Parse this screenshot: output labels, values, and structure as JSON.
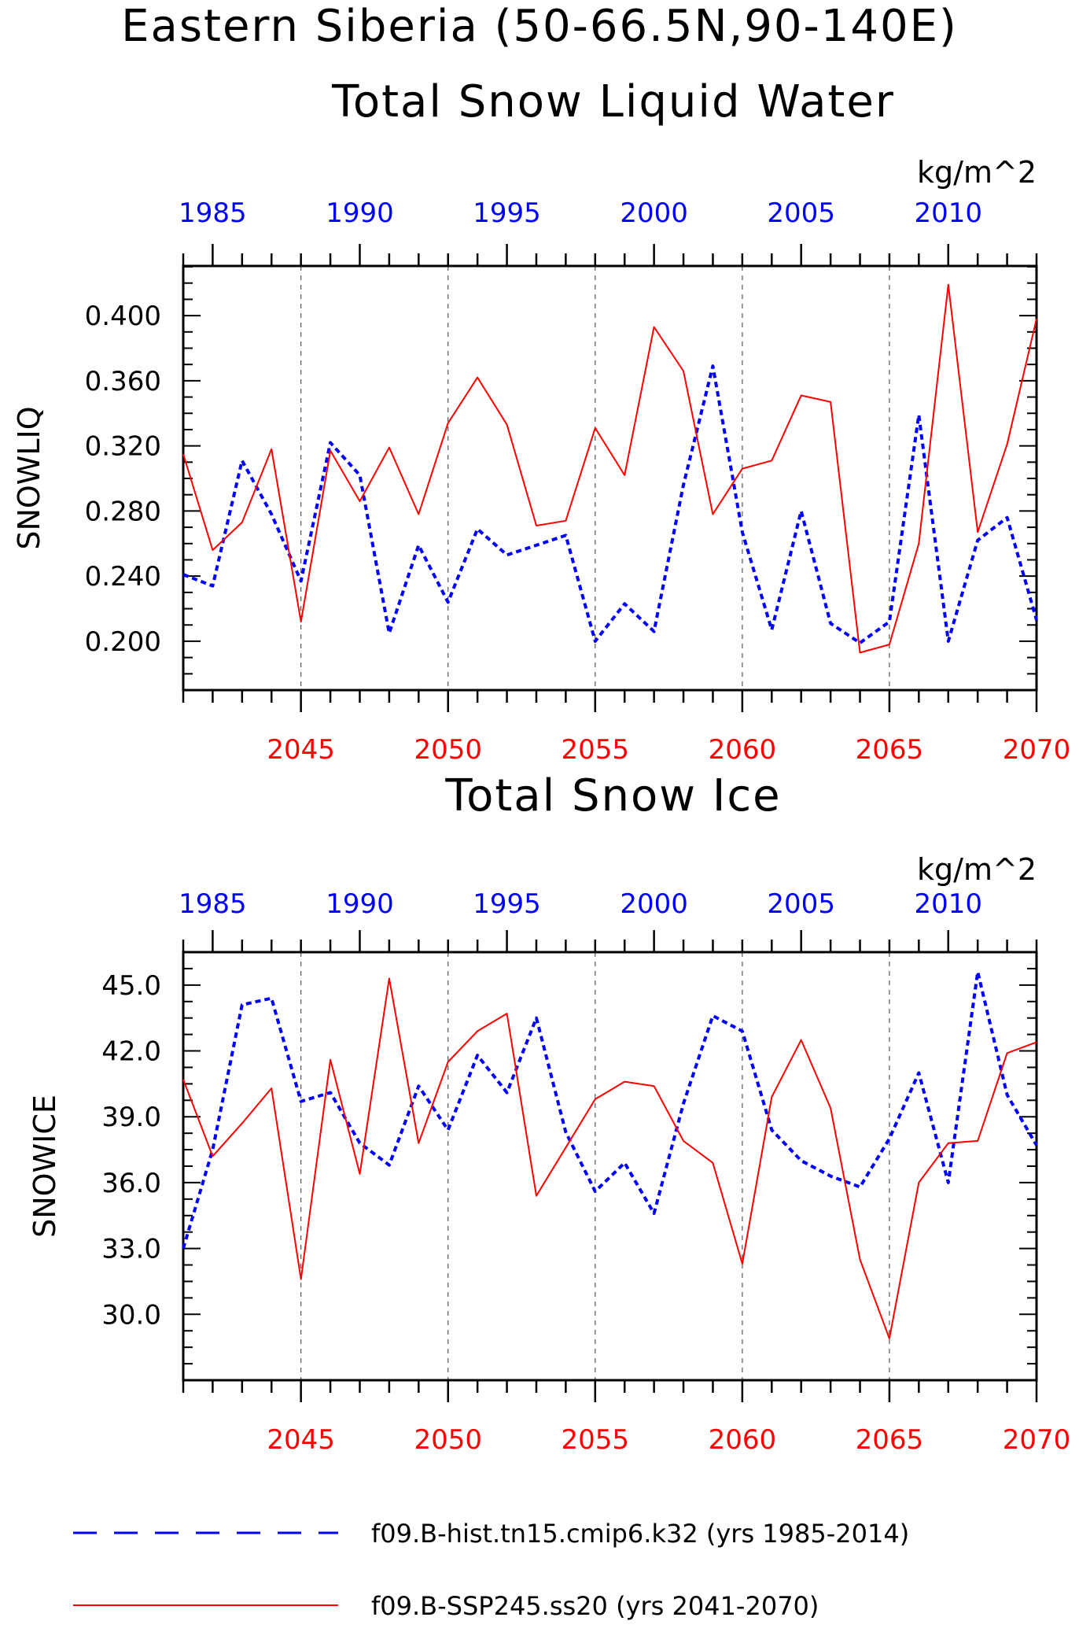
{
  "page": {
    "title": "Eastern Siberia (50-66.5N,90-140E)"
  },
  "legend": [
    {
      "label": "f09.B-hist.tn15.cmip6.k32 (yrs 1985-2014)",
      "color": "#0000ff",
      "style": "dashed"
    },
    {
      "label": "f09.B-SSP245.ss20 (yrs 2041-2070)",
      "color": "#ff0000",
      "style": "solid"
    }
  ],
  "chart_data": [
    {
      "type": "line",
      "title": "Total Snow Liquid Water",
      "units": "kg/m^2",
      "ylabel": "SNOWLIQ",
      "ylim": [
        0.17,
        0.4305
      ],
      "yticks": [
        0.2,
        0.24,
        0.28,
        0.32,
        0.36,
        0.4
      ],
      "ytick_labels": [
        "0.200",
        "0.240",
        "0.280",
        "0.320",
        "0.360",
        "0.400"
      ],
      "x_top": {
        "range": [
          1984.0,
          2013.0
        ],
        "ticks": [
          1985,
          1990,
          1995,
          2000,
          2005,
          2010
        ],
        "color": "#0000ff"
      },
      "x_bottom": {
        "range": [
          2041.0,
          2070.0
        ],
        "ticks": [
          2045,
          2050,
          2055,
          2060,
          2065,
          2070
        ],
        "color": "#ff0000"
      },
      "grid": "vertical-dashed-at-bottom-major-ticks",
      "series": [
        {
          "name": "f09.B-hist.tn15.cmip6.k32 (yrs 1985-2014)",
          "axis": "top",
          "color": "#0000ff",
          "style": "dashed",
          "x": [
            1984,
            1985,
            1986,
            1987,
            1988,
            1989,
            1990,
            1991,
            1992,
            1993,
            1994,
            1995,
            1996,
            1997,
            1998,
            1999,
            2000,
            2001,
            2002,
            2003,
            2004,
            2005,
            2006,
            2007,
            2008,
            2009,
            2010,
            2011,
            2012,
            2013
          ],
          "values": [
            0.241,
            0.234,
            0.311,
            0.278,
            0.237,
            0.322,
            0.302,
            0.205,
            0.259,
            0.224,
            0.269,
            0.253,
            0.259,
            0.265,
            0.2,
            0.223,
            0.206,
            0.296,
            0.369,
            0.267,
            0.207,
            0.28,
            0.211,
            0.199,
            0.212,
            0.339,
            0.2,
            0.262,
            0.276,
            0.213
          ]
        },
        {
          "name": "f09.B-SSP245.ss20 (yrs 2041-2070)",
          "axis": "bottom",
          "color": "#ff0000",
          "style": "solid",
          "x": [
            2041,
            2042,
            2043,
            2044,
            2045,
            2046,
            2047,
            2048,
            2049,
            2050,
            2051,
            2052,
            2053,
            2054,
            2055,
            2056,
            2057,
            2058,
            2059,
            2060,
            2061,
            2062,
            2063,
            2064,
            2065,
            2066,
            2067,
            2068,
            2069,
            2070
          ],
          "values": [
            0.315,
            0.256,
            0.273,
            0.318,
            0.212,
            0.317,
            0.286,
            0.319,
            0.278,
            0.334,
            0.362,
            0.333,
            0.271,
            0.274,
            0.331,
            0.302,
            0.393,
            0.366,
            0.278,
            0.306,
            0.311,
            0.351,
            0.347,
            0.193,
            0.198,
            0.26,
            0.419,
            0.267,
            0.321,
            0.398
          ]
        }
      ]
    },
    {
      "type": "line",
      "title": "Total Snow Ice",
      "units": "kg/m^2",
      "ylabel": "SNOWICE",
      "ylim": [
        27.0,
        46.5
      ],
      "yticks": [
        30,
        33,
        36,
        39,
        42,
        45
      ],
      "ytick_labels": [
        "30.0",
        "33.0",
        "36.0",
        "39.0",
        "42.0",
        "45.0"
      ],
      "x_top": {
        "range": [
          1984.0,
          2013.0
        ],
        "ticks": [
          1985,
          1990,
          1995,
          2000,
          2005,
          2010
        ],
        "color": "#0000ff"
      },
      "x_bottom": {
        "range": [
          2041.0,
          2070.0
        ],
        "ticks": [
          2045,
          2050,
          2055,
          2060,
          2065,
          2070
        ],
        "color": "#ff0000"
      },
      "grid": "vertical-dashed-at-bottom-major-ticks",
      "series": [
        {
          "name": "f09.B-hist.tn15.cmip6.k32 (yrs 1985-2014)",
          "axis": "top",
          "color": "#0000ff",
          "style": "dashed",
          "x": [
            1984,
            1985,
            1986,
            1987,
            1988,
            1989,
            1990,
            1991,
            1992,
            1993,
            1994,
            1995,
            1996,
            1997,
            1998,
            1999,
            2000,
            2001,
            2002,
            2003,
            2004,
            2005,
            2006,
            2007,
            2008,
            2009,
            2010,
            2011,
            2012,
            2013
          ],
          "values": [
            33.0,
            37.5,
            44.1,
            44.4,
            39.7,
            40.1,
            37.8,
            36.8,
            40.4,
            38.4,
            41.8,
            40.1,
            43.5,
            38.3,
            35.6,
            36.9,
            34.6,
            39.6,
            43.6,
            42.9,
            38.4,
            37.0,
            36.3,
            35.8,
            38.0,
            41.0,
            36.0,
            45.6,
            40.0,
            37.7
          ]
        },
        {
          "name": "f09.B-SSP245.ss20 (yrs 2041-2070)",
          "axis": "bottom",
          "color": "#ff0000",
          "style": "solid",
          "x": [
            2041,
            2042,
            2043,
            2044,
            2045,
            2046,
            2047,
            2048,
            2049,
            2050,
            2051,
            2052,
            2053,
            2054,
            2055,
            2056,
            2057,
            2058,
            2059,
            2060,
            2061,
            2062,
            2063,
            2064,
            2065,
            2066,
            2067,
            2068,
            2069,
            2070
          ],
          "values": [
            40.7,
            37.2,
            38.7,
            40.3,
            31.6,
            41.6,
            36.4,
            45.3,
            37.8,
            41.5,
            42.9,
            43.7,
            35.4,
            37.6,
            39.8,
            40.6,
            40.4,
            37.9,
            36.9,
            32.3,
            39.9,
            42.5,
            39.4,
            32.5,
            28.9,
            36.0,
            37.8,
            37.9,
            41.9,
            42.4
          ]
        }
      ]
    }
  ]
}
